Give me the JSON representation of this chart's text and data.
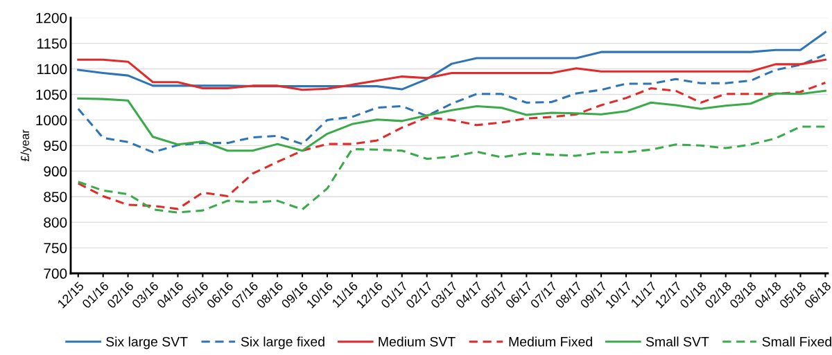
{
  "chart_data": {
    "type": "line",
    "ylabel": "£/year",
    "categories": [
      "12/15",
      "01/16",
      "02/16",
      "03/16",
      "04/16",
      "05/16",
      "06/16",
      "07/16",
      "08/16",
      "09/16",
      "10/16",
      "11/16",
      "12/16",
      "01/17",
      "02/17",
      "03/17",
      "04/17",
      "05/17",
      "06/17",
      "07/17",
      "08/17",
      "09/17",
      "10/17",
      "11/17",
      "12/17",
      "01/18",
      "02/18",
      "03/18",
      "04/18",
      "05/18",
      "06/18"
    ],
    "ylim": [
      700,
      1200
    ],
    "yticks": [
      700,
      750,
      800,
      850,
      900,
      950,
      1000,
      1050,
      1100,
      1150,
      1200
    ],
    "grid": "y",
    "legend": "bottom",
    "marker": "none",
    "series": [
      {
        "name": "Six large SVT",
        "color": "#2e75b6",
        "line_style": "solid",
        "values": [
          1098,
          1092,
          1087,
          1067,
          1067,
          1067,
          1067,
          1066,
          1066,
          1066,
          1066,
          1066,
          1066,
          1060,
          1080,
          1110,
          1121,
          1121,
          1121,
          1121,
          1121,
          1133,
          1133,
          1133,
          1133,
          1133,
          1133,
          1133,
          1137,
          1137,
          1172
        ]
      },
      {
        "name": "Six large fixed",
        "color": "#2e75b6",
        "line_style": "dashed",
        "values": [
          1022,
          965,
          957,
          937,
          951,
          955,
          955,
          966,
          969,
          953,
          1000,
          1006,
          1024,
          1027,
          1008,
          1032,
          1051,
          1051,
          1034,
          1035,
          1052,
          1059,
          1071,
          1071,
          1080,
          1072,
          1072,
          1077,
          1098,
          1108,
          1128
        ]
      },
      {
        "name": "Medium SVT",
        "color": "#e02b2b",
        "line_style": "solid",
        "values": [
          1118,
          1118,
          1114,
          1074,
          1074,
          1062,
          1062,
          1067,
          1067,
          1059,
          1061,
          1069,
          1077,
          1085,
          1082,
          1092,
          1092,
          1092,
          1092,
          1092,
          1101,
          1095,
          1095,
          1095,
          1095,
          1095,
          1095,
          1095,
          1109,
          1109,
          1118
        ]
      },
      {
        "name": "Medium Fixed",
        "color": "#e02b2b",
        "line_style": "dashed",
        "values": [
          876,
          851,
          834,
          832,
          826,
          858,
          851,
          895,
          918,
          940,
          953,
          953,
          960,
          985,
          1005,
          1000,
          990,
          995,
          1003,
          1006,
          1011,
          1029,
          1043,
          1062,
          1057,
          1034,
          1051,
          1051,
          1051,
          1055,
          1073
        ]
      },
      {
        "name": "Small SVT",
        "color": "#3aaa4a",
        "line_style": "solid",
        "values": [
          1042,
          1041,
          1038,
          967,
          952,
          958,
          940,
          940,
          953,
          940,
          973,
          992,
          1001,
          998,
          1009,
          1019,
          1027,
          1024,
          1010,
          1014,
          1013,
          1011,
          1017,
          1034,
          1029,
          1022,
          1028,
          1032,
          1052,
          1051,
          1057
        ]
      },
      {
        "name": "Small Fixed",
        "color": "#3aaa4a",
        "line_style": "dashed",
        "values": [
          879,
          862,
          855,
          825,
          819,
          823,
          842,
          839,
          842,
          825,
          866,
          943,
          942,
          940,
          924,
          928,
          938,
          927,
          935,
          932,
          930,
          937,
          937,
          942,
          952,
          950,
          945,
          952,
          964,
          987,
          987
        ]
      }
    ]
  }
}
